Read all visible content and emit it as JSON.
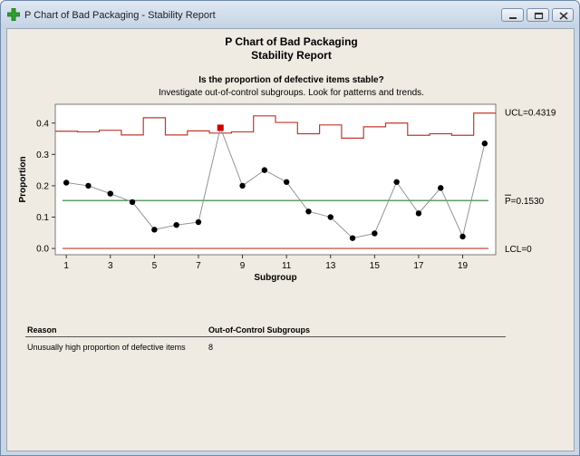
{
  "window": {
    "title": "P Chart of Bad Packaging - Stability Report",
    "icon": "minitab-plus-icon",
    "controls": [
      "minimize-icon",
      "restore-icon",
      "close-icon"
    ]
  },
  "report": {
    "title_line1": "P Chart of Bad Packaging",
    "title_line2": "Stability Report",
    "question": "Is the proportion of defective items stable?",
    "instruction": "Investigate out-of-control subgroups. Look for patterns and trends."
  },
  "chart_data": {
    "type": "line",
    "xlabel": "Subgroup",
    "ylabel": "Proportion",
    "x": [
      1,
      2,
      3,
      4,
      5,
      6,
      7,
      8,
      9,
      10,
      11,
      12,
      13,
      14,
      15,
      16,
      17,
      18,
      19,
      20
    ],
    "xticks": [
      1,
      3,
      5,
      7,
      9,
      11,
      13,
      15,
      17,
      19
    ],
    "yticks": [
      "0.0",
      "0.1",
      "0.2",
      "0.3",
      "0.4"
    ],
    "xlim": [
      0.5,
      20.5
    ],
    "ylim": [
      -0.02,
      0.46
    ],
    "series": [
      {
        "values": [
          0.21,
          0.2,
          0.175,
          0.148,
          0.06,
          0.075,
          0.084,
          0.385,
          0.2,
          0.25,
          0.212,
          0.118,
          0.1,
          0.033,
          0.048,
          0.212,
          0.112,
          0.193,
          0.038,
          0.335
        ]
      }
    ],
    "ucl_values": [
      0.374,
      0.372,
      0.377,
      0.362,
      0.417,
      0.362,
      0.375,
      0.368,
      0.372,
      0.423,
      0.402,
      0.366,
      0.394,
      0.352,
      0.388,
      0.4,
      0.361,
      0.366,
      0.361,
      0.4319
    ],
    "center_line": 0.153,
    "lcl": 0,
    "out_of_control": [
      8
    ],
    "labels": {
      "ucl": "UCL=0.4319",
      "center": "P=0.1530",
      "lcl": "LCL=0"
    },
    "colors": {
      "limits": "#c0392b",
      "center": "#2e7d32",
      "points": "#000000",
      "flagged": "#cc0000"
    },
    "grid": false,
    "legend": "none"
  },
  "table": {
    "headers": [
      "Reason",
      "Out-of-Control Subgroups"
    ],
    "rows": [
      [
        "Unusually high proportion of defective items",
        "8"
      ]
    ]
  }
}
